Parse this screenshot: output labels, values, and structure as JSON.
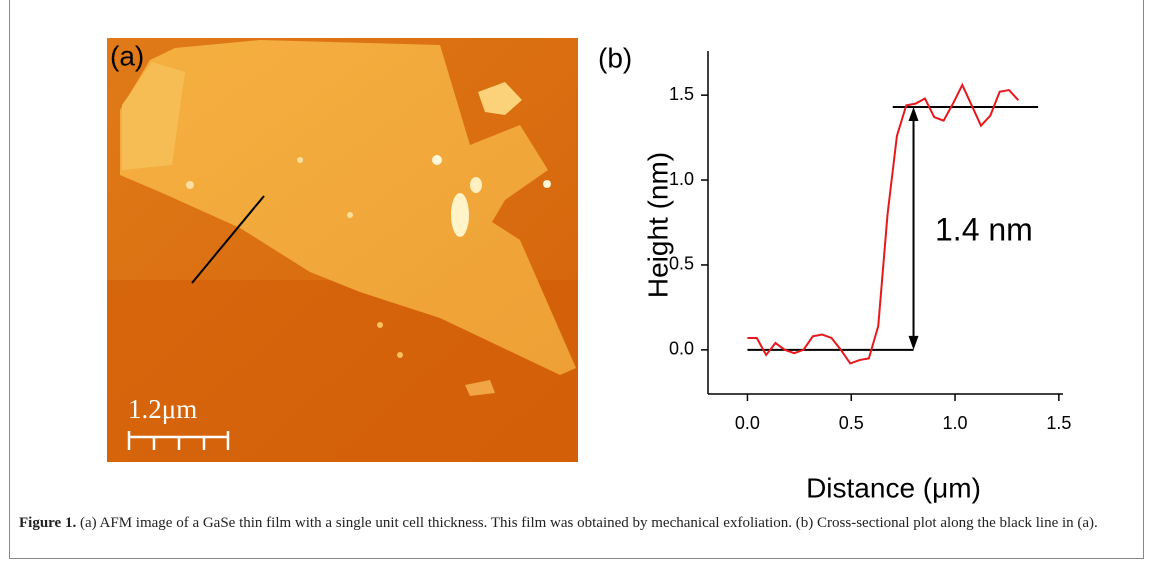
{
  "figure": {
    "panel_a_label": "(a)",
    "scale_bar": "1.2μm",
    "caption_label": "Figure 1.",
    "caption": "(a) AFM image of a GaSe thin film with a single unit cell thickness. This film was obtained by mechanical exfoliation. (b) Cross-sectional plot along the black line in (a)."
  },
  "chart_data": {
    "type": "line",
    "panel_label": "(b)",
    "x_label": "Distance (μm)",
    "y_label": "Height (nm)",
    "x": [
      0,
      0.045,
      0.09,
      0.135,
      0.18,
      0.225,
      0.27,
      0.315,
      0.36,
      0.405,
      0.45,
      0.495,
      0.54,
      0.585,
      0.63,
      0.675,
      0.72,
      0.765,
      0.81,
      0.855,
      0.9,
      0.945,
      0.99,
      1.035,
      1.08,
      1.125,
      1.17,
      1.215,
      1.26,
      1.305
    ],
    "series": [
      {
        "color": "#e8181c",
        "values": [
          0.07,
          0.07,
          -0.03,
          0.04,
          0,
          -0.02,
          0,
          0.08,
          0.09,
          0.07,
          0,
          -0.08,
          -0.06,
          -0.05,
          0.14,
          0.8,
          1.26,
          1.44,
          1.45,
          1.48,
          1.37,
          1.35,
          1.45,
          1.56,
          1.44,
          1.32,
          1.38,
          1.52,
          1.53,
          1.47
        ]
      }
    ],
    "levels": [
      {
        "y": 0,
        "x": [
          0,
          0.8
        ]
      },
      {
        "y": 1.43,
        "x": [
          0.7,
          1.4
        ]
      }
    ],
    "arrow": {
      "x": 0.8,
      "y": [
        0,
        1.43
      ]
    },
    "annotation": "1.4 nm",
    "xlim": [
      -0.19,
      1.52
    ],
    "ylim": [
      -0.26,
      1.76
    ],
    "xticks": [
      {
        "value": 0,
        "label": "0.0"
      },
      0.5,
      {
        "value": 1,
        "label": "1.0"
      },
      1.5
    ],
    "yticks": [
      {
        "value": 0,
        "label": "0.0"
      },
      0.5,
      {
        "value": 1,
        "label": "1.0"
      },
      1.5
    ]
  }
}
